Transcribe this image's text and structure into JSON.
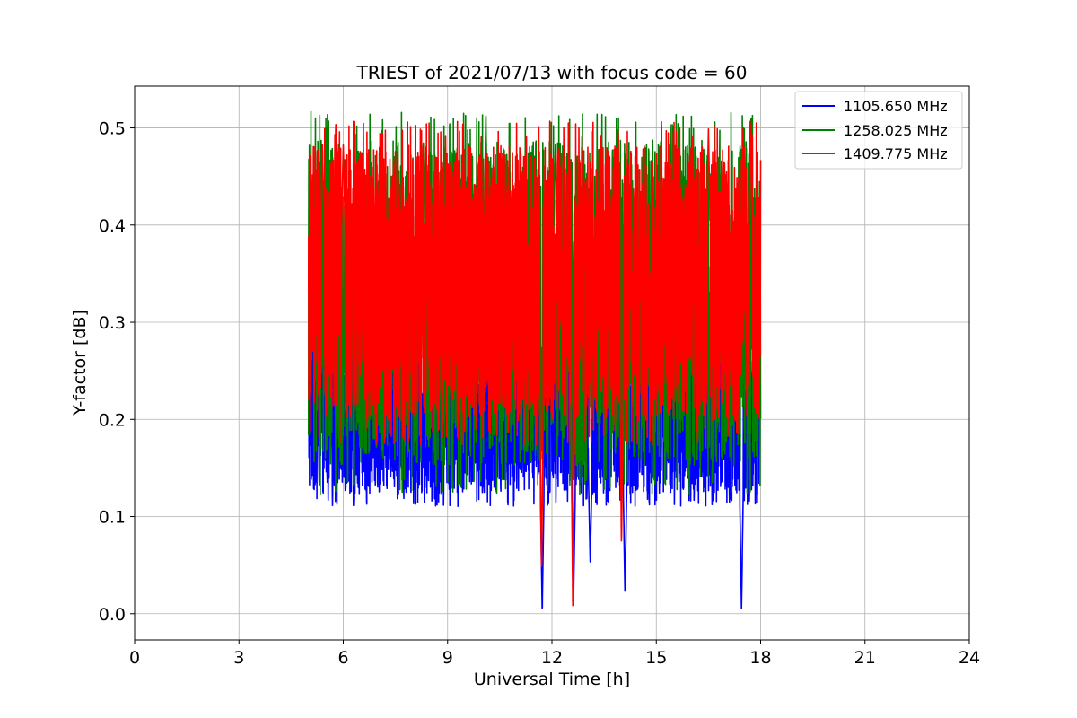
{
  "chart_data": {
    "type": "line",
    "title": "TRIEST of 2021/07/13 with focus code = 60",
    "xlabel": "Universal Time [h]",
    "ylabel": "Y-factor [dB]",
    "xlim": [
      0,
      24
    ],
    "ylim": [
      -0.027,
      0.543
    ],
    "xticks": [
      0,
      3,
      6,
      9,
      12,
      15,
      18,
      21,
      24
    ],
    "yticks": [
      0.0,
      0.1,
      0.2,
      0.3,
      0.4,
      0.5
    ],
    "ytick_labels": [
      "0.0",
      "0.1",
      "0.2",
      "0.3",
      "0.4",
      "0.5"
    ],
    "grid": true,
    "legend_position": "top-right",
    "x_range": [
      5.0,
      18.0
    ],
    "series": [
      {
        "name": "1105.650 MHz",
        "color": "#0000ff",
        "mean": 0.2,
        "min": 0.0,
        "max": 0.29,
        "notable_dips": [
          [
            11.72,
            0.0
          ],
          [
            12.62,
            0.01
          ],
          [
            17.45,
            0.005
          ],
          [
            13.1,
            0.05
          ],
          [
            14.1,
            0.02
          ]
        ]
      },
      {
        "name": "1258.025 MHz",
        "color": "#008000",
        "mean": 0.32,
        "min": 0.0,
        "max": 0.517,
        "notable_peaks": [
          [
            10.1,
            0.517
          ],
          [
            8.3,
            0.487
          ],
          [
            12.1,
            0.487
          ],
          [
            11.0,
            0.46
          ]
        ]
      },
      {
        "name": "1409.775 MHz",
        "color": "#ff0000",
        "mean": 0.34,
        "min": 0.0,
        "max": 0.507,
        "notable_peaks": [
          [
            17.7,
            0.507
          ],
          [
            16.5,
            0.5
          ],
          [
            6.0,
            0.483
          ],
          [
            5.4,
            0.483
          ]
        ],
        "notable_dips": [
          [
            12.6,
            0.0
          ],
          [
            11.7,
            0.04
          ],
          [
            14.0,
            0.07
          ]
        ]
      }
    ]
  }
}
